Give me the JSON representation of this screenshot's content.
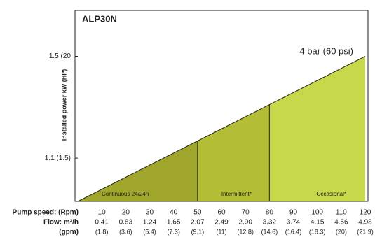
{
  "chart_data": {
    "type": "area_zones",
    "title": "ALP30N",
    "y_label": "Installed power kW (HP)",
    "annotation": "4 bar (60 psi)",
    "xlim": [
      0,
      120
    ],
    "ylim": [
      0.93,
      1.68
    ],
    "yticks": [
      {
        "value": 1.5,
        "label": "1.5 (20"
      },
      {
        "value": 1.1,
        "label": "1.1 (1.5)"
      }
    ],
    "series": [
      {
        "x": [
          0,
          120
        ],
        "values": [
          0.93,
          1.5
        ],
        "color": "#222222"
      }
    ],
    "zones": [
      {
        "name": "Continuous 24/24h",
        "x": [
          0,
          50
        ],
        "color": "#a0a52b"
      },
      {
        "name": "Intermittent*",
        "x": [
          50,
          80
        ],
        "color": "#b4bd36"
      },
      {
        "name": "Occasional*",
        "x": [
          80,
          120
        ],
        "color": "#c7d84b"
      }
    ],
    "speed_label": "Pump speed: (Rpm)",
    "xticks": [
      10,
      20,
      30,
      40,
      50,
      60,
      70,
      80,
      90,
      100,
      110,
      120
    ],
    "flow_label": "Flow: m³/h",
    "flow": [
      "0.41",
      "0.83",
      "1.24",
      "1.65",
      "2.07",
      "2.49",
      "2.90",
      "3.32",
      "3.74",
      "4.15",
      "4.56",
      "4.98"
    ],
    "gpm_label": "(gpm)",
    "gpm": [
      "(1.8)",
      "(3.6)",
      "(5.4)",
      "(7.3)",
      "(9.1)",
      "(11)",
      "(12.8)",
      "(14.6)",
      "(16.4)",
      "(18.3)",
      "(20)",
      "(21.9)"
    ]
  }
}
